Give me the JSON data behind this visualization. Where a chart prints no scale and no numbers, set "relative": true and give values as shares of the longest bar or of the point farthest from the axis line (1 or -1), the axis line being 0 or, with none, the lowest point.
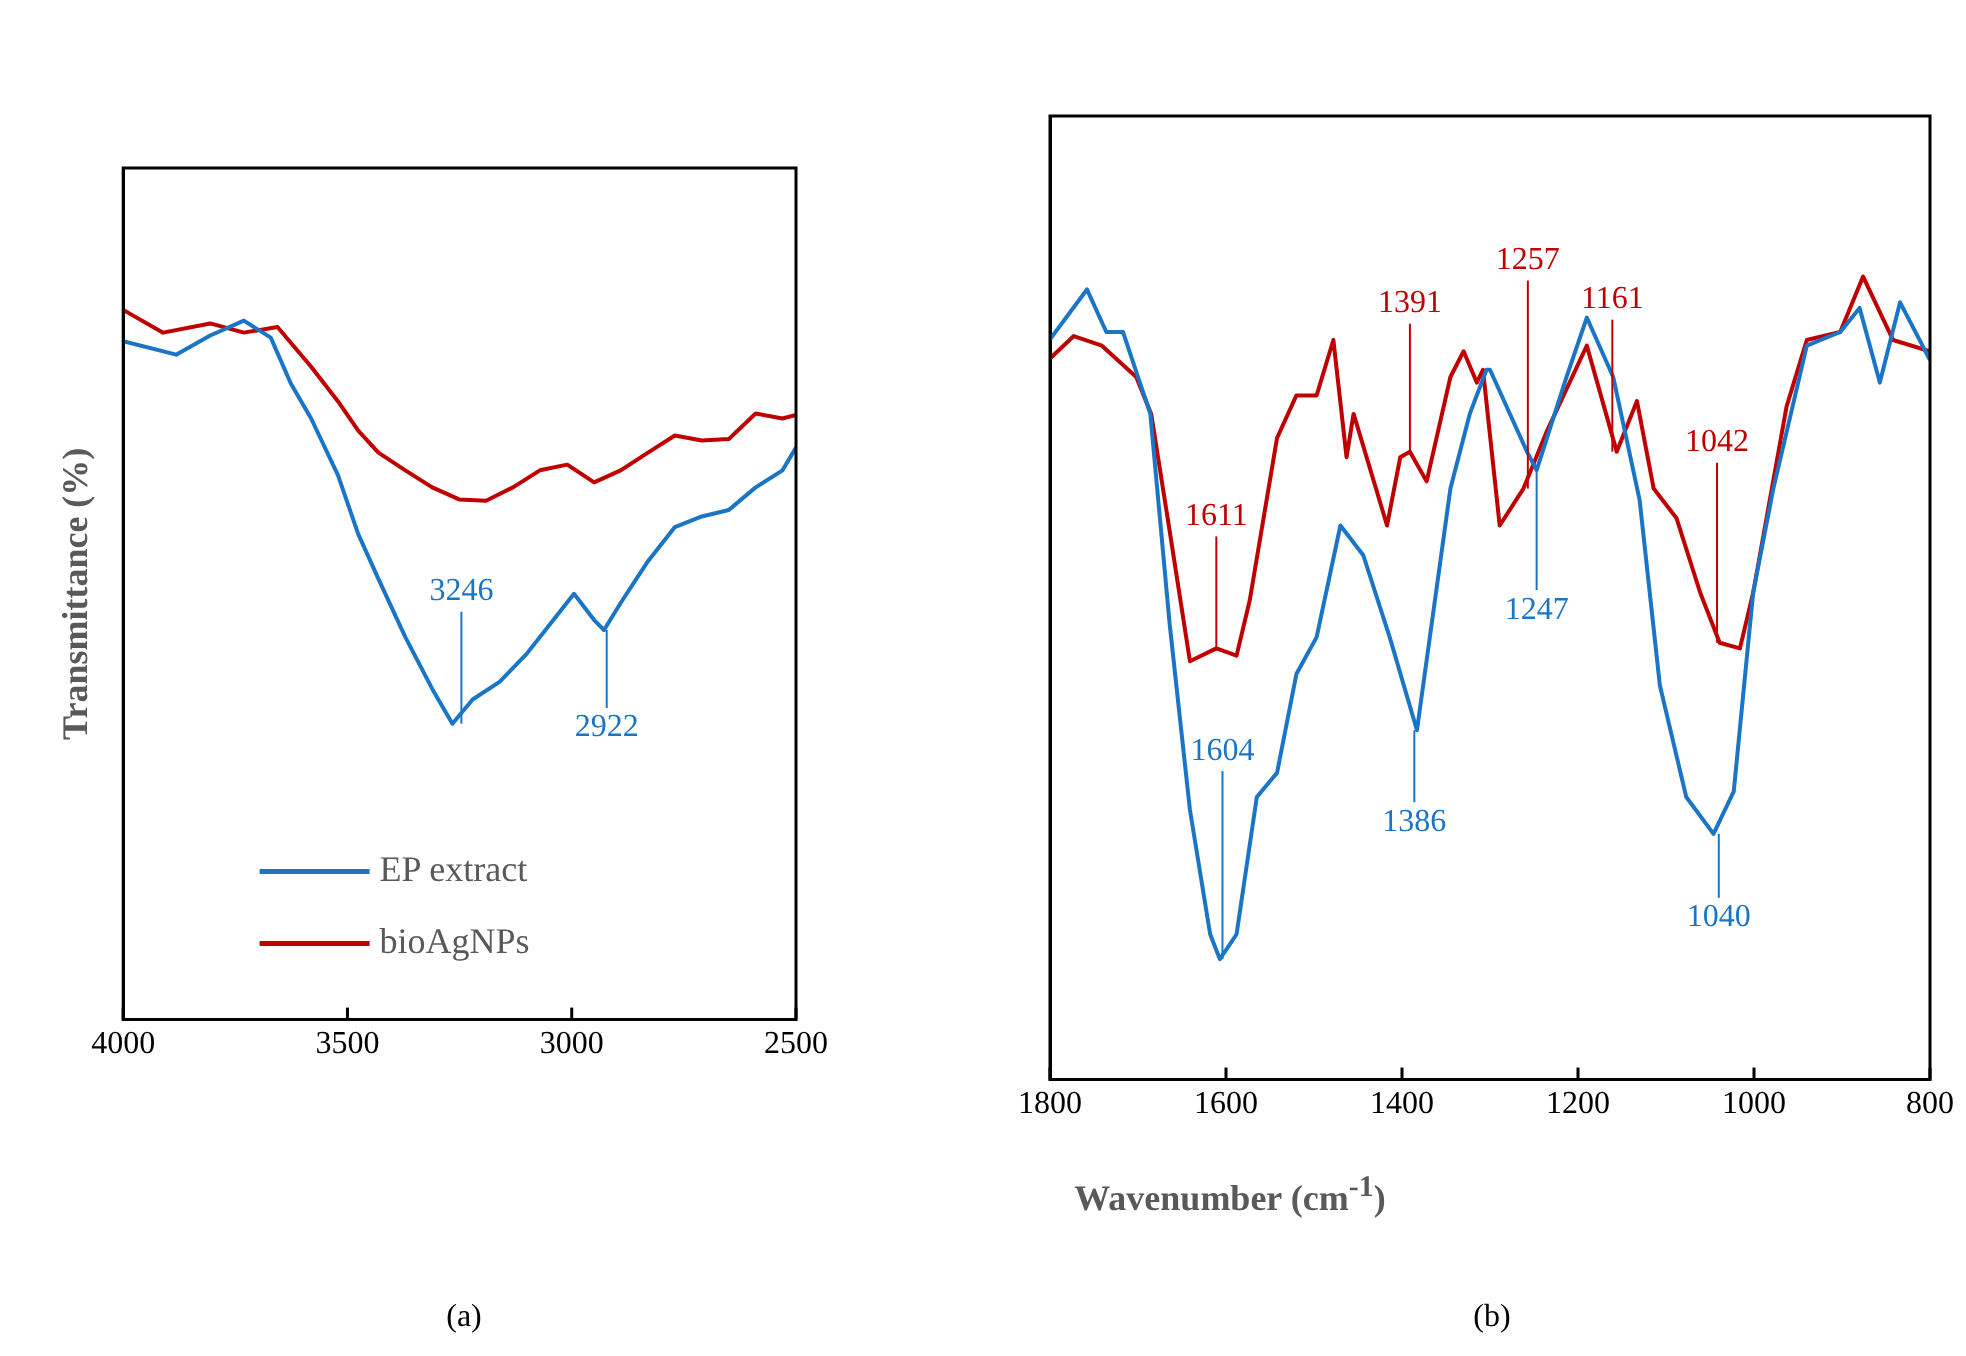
{
  "chart_data": [
    {
      "type": "line",
      "relative": true,
      "ylabel": "Transmittance (%)",
      "xlim": [
        4000,
        2500
      ],
      "xticks": [
        4000,
        3500,
        3000,
        2500
      ],
      "legend": "bottom",
      "grid": false,
      "marker": "none",
      "series": [
        {
          "name": "EP extract",
          "color": "#1a75c7",
          "x": [
            4000,
            3882,
            3806,
            3731,
            3671,
            3626,
            3581,
            3521,
            3476,
            3431,
            3371,
            3311,
            3266,
            3221,
            3161,
            3101,
            3041,
            2995,
            2950,
            2928,
            2891,
            2830,
            2770,
            2710,
            2650,
            2590,
            2530,
            2500
          ],
          "values": [
            0.956,
            0.937,
            0.964,
            0.985,
            0.961,
            0.896,
            0.847,
            0.767,
            0.684,
            0.621,
            0.539,
            0.466,
            0.417,
            0.451,
            0.476,
            0.515,
            0.563,
            0.6,
            0.563,
            0.549,
            0.587,
            0.646,
            0.694,
            0.709,
            0.718,
            0.75,
            0.774,
            0.806
          ]
        },
        {
          "name": "bioAgNPs",
          "color": "#c00000",
          "x": [
            4000,
            3911,
            3806,
            3731,
            3656,
            3581,
            3521,
            3476,
            3431,
            3371,
            3311,
            3251,
            3191,
            3131,
            3071,
            3010,
            2950,
            2891,
            2830,
            2770,
            2710,
            2650,
            2590,
            2530,
            2500
          ],
          "values": [
            1,
            0.968,
            0.981,
            0.968,
            0.976,
            0.92,
            0.871,
            0.83,
            0.799,
            0.774,
            0.75,
            0.733,
            0.731,
            0.75,
            0.774,
            0.782,
            0.757,
            0.774,
            0.799,
            0.823,
            0.816,
            0.818,
            0.854,
            0.847,
            0.852
          ]
        }
      ],
      "annotations": [
        {
          "text": "3246",
          "x": 3246,
          "y": 0.417
        },
        {
          "text": "2922",
          "x": 2922,
          "y": 0.549
        },
        "(a)"
      ]
    },
    {
      "type": "line",
      "relative": true,
      "xlabel": "Wavenumber (cm$^{-1}$)",
      "xlim": [
        1800,
        800
      ],
      "xticks": [
        1800,
        1600,
        1400,
        1200,
        1000,
        800
      ],
      "grid": false,
      "marker": "none",
      "series": [
        {
          "color": "#1a75c7",
          "x": [
            1800,
            1758,
            1736,
            1717,
            1686,
            1664,
            1641,
            1618,
            1607,
            1588,
            1565,
            1542,
            1520,
            1497,
            1470,
            1444,
            1414,
            1383,
            1345,
            1323,
            1304,
            1300,
            1258,
            1247,
            1213,
            1190,
            1160,
            1130,
            1107,
            1077,
            1046,
            1023,
            1001,
            978,
            940,
            902,
            880,
            857,
            834,
            800
          ],
          "values": [
            0.922,
            0.984,
            0.931,
            0.931,
            0.829,
            0.567,
            0.336,
            0.181,
            0.15,
            0.181,
            0.352,
            0.382,
            0.505,
            0.551,
            0.69,
            0.653,
            0.551,
            0.435,
            0.736,
            0.829,
            0.884,
            0.884,
            0.782,
            0.759,
            0.875,
            0.949,
            0.875,
            0.722,
            0.491,
            0.352,
            0.306,
            0.359,
            0.606,
            0.736,
            0.914,
            0.931,
            0.961,
            0.868,
            0.968,
            0.896
          ]
        },
        {
          "color": "#c00000",
          "x": [
            1800,
            1773,
            1741,
            1702,
            1685,
            1664,
            1641,
            1611,
            1588,
            1573,
            1542,
            1520,
            1497,
            1478,
            1463,
            1455,
            1432,
            1417,
            1402,
            1391,
            1372,
            1345,
            1330,
            1315,
            1308,
            1289,
            1262,
            1236,
            1190,
            1156,
            1133,
            1114,
            1088,
            1061,
            1039,
            1016,
            1001,
            963,
            940,
            902,
            876,
            842,
            800
          ],
          "values": [
            0.898,
            0.926,
            0.914,
            0.875,
            0.829,
            0.683,
            0.521,
            0.537,
            0.528,
            0.597,
            0.799,
            0.852,
            0.852,
            0.921,
            0.775,
            0.829,
            0.745,
            0.69,
            0.775,
            0.782,
            0.745,
            0.875,
            0.907,
            0.868,
            0.884,
            0.69,
            0.736,
            0.806,
            0.914,
            0.782,
            0.845,
            0.736,
            0.699,
            0.606,
            0.544,
            0.537,
            0.606,
            0.838,
            0.921,
            0.931,
            1,
            0.921,
            0.907
          ]
        }
      ],
      "annotations": [
        {
          "text": "1611",
          "x": 1611,
          "y": 0.537
        },
        {
          "text": "1391",
          "x": 1391,
          "y": 0.782
        },
        {
          "text": "1257",
          "x": 1257,
          "y": 0.736
        },
        {
          "text": "1161",
          "x": 1161,
          "y": 0.782
        },
        {
          "text": "1042",
          "x": 1042,
          "y": 0.544
        },
        {
          "text": "1604",
          "x": 1604,
          "y": 0.15
        },
        {
          "text": "1386",
          "x": 1386,
          "y": 0.435
        },
        {
          "text": "1247",
          "x": 1247,
          "y": 0.759
        },
        {
          "text": "1040",
          "x": 1040,
          "y": 0.306
        },
        "(b)"
      ]
    }
  ]
}
